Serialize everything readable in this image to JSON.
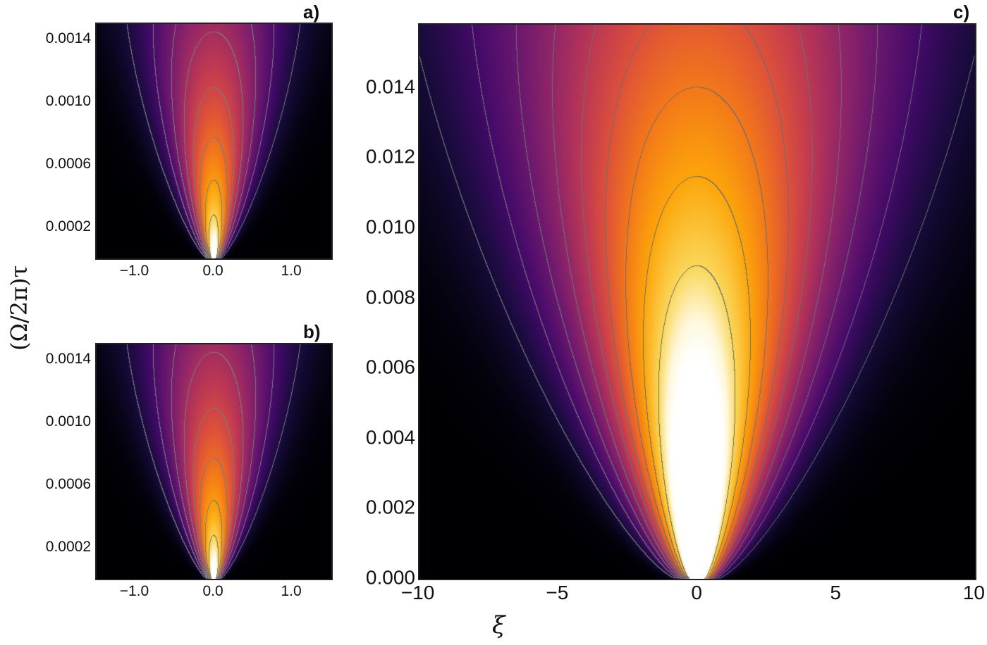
{
  "figure": {
    "y_axis_label": "(Ω/2π)τ",
    "x_axis_label": "ξ"
  },
  "chart_data": [
    {
      "type": "heatmap",
      "panel_label": "a)",
      "colormap": "inferno-like (black → purple → orange → white)",
      "contour_color": "#7a7a7a",
      "xlim": [
        -1.5,
        1.5
      ],
      "ylim": [
        0,
        0.0015
      ],
      "xticks": [
        {
          "value": -1.0,
          "label": "−1.0"
        },
        {
          "value": 0.0,
          "label": "0.0"
        },
        {
          "value": 1.0,
          "label": "1.0"
        }
      ],
      "yticks": [
        {
          "value": 0.0002,
          "label": "0.0002"
        },
        {
          "value": 0.0006,
          "label": "0.0006"
        },
        {
          "value": 0.001,
          "label": "0.0010"
        },
        {
          "value": 0.0014,
          "label": "0.0014"
        }
      ]
    },
    {
      "type": "heatmap",
      "panel_label": "b)",
      "colormap": "inferno-like (black → purple → orange → white)",
      "contour_color": "#7a7a7a",
      "xlim": [
        -1.5,
        1.5
      ],
      "ylim": [
        0,
        0.0015
      ],
      "xticks": [
        {
          "value": -1.0,
          "label": "−1.0"
        },
        {
          "value": 0.0,
          "label": "0.0"
        },
        {
          "value": 1.0,
          "label": "1.0"
        }
      ],
      "yticks": [
        {
          "value": 0.0002,
          "label": "0.0002"
        },
        {
          "value": 0.0006,
          "label": "0.0006"
        },
        {
          "value": 0.001,
          "label": "0.0010"
        },
        {
          "value": 0.0014,
          "label": "0.0014"
        }
      ]
    },
    {
      "type": "heatmap",
      "panel_label": "c)",
      "colormap": "inferno-like (black → purple → orange → white)",
      "contour_color": "#6e6e6e",
      "xlim": [
        -10,
        10
      ],
      "ylim": [
        0,
        0.0158
      ],
      "xticks": [
        {
          "value": -10,
          "label": "−10"
        },
        {
          "value": -5,
          "label": "−5"
        },
        {
          "value": 0,
          "label": "0"
        },
        {
          "value": 5,
          "label": "5"
        },
        {
          "value": 10,
          "label": "10"
        }
      ],
      "yticks": [
        {
          "value": 0.0,
          "label": "0.000"
        },
        {
          "value": 0.002,
          "label": "0.002"
        },
        {
          "value": 0.004,
          "label": "0.004"
        },
        {
          "value": 0.006,
          "label": "0.006"
        },
        {
          "value": 0.008,
          "label": "0.008"
        },
        {
          "value": 0.01,
          "label": "0.010"
        },
        {
          "value": 0.012,
          "label": "0.012"
        },
        {
          "value": 0.014,
          "label": "0.014"
        }
      ]
    }
  ]
}
